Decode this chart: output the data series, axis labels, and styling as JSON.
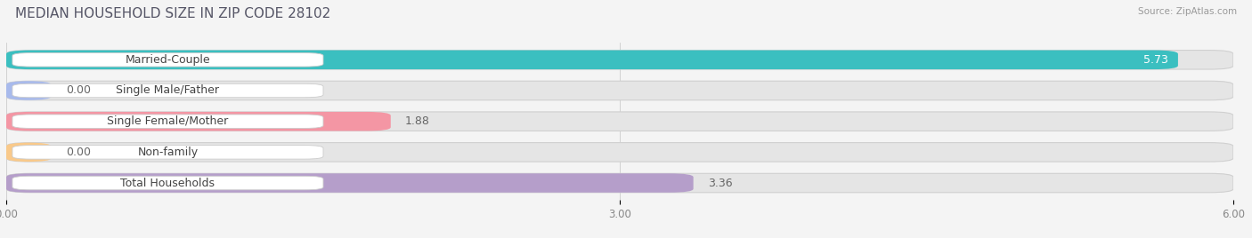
{
  "title": "MEDIAN HOUSEHOLD SIZE IN ZIP CODE 28102",
  "source": "Source: ZipAtlas.com",
  "categories": [
    "Married-Couple",
    "Single Male/Father",
    "Single Female/Mother",
    "Non-family",
    "Total Households"
  ],
  "values": [
    5.73,
    0.0,
    1.88,
    0.0,
    3.36
  ],
  "bar_colors": [
    "#3bbfc0",
    "#a8baec",
    "#f496a4",
    "#f9c98a",
    "#b59eca"
  ],
  "background_color": "#f4f4f4",
  "bar_bg_color": "#e5e5e5",
  "bar_bg_color2": "#ebebeb",
  "xlim": [
    0.0,
    6.0
  ],
  "xticks": [
    0.0,
    3.0,
    6.0
  ],
  "xtick_labels": [
    "0.00",
    "3.00",
    "6.00"
  ],
  "value_fontsize": 9,
  "label_fontsize": 9,
  "title_fontsize": 11,
  "bar_height": 0.62,
  "figsize": [
    14.06,
    2.68
  ],
  "dpi": 100
}
